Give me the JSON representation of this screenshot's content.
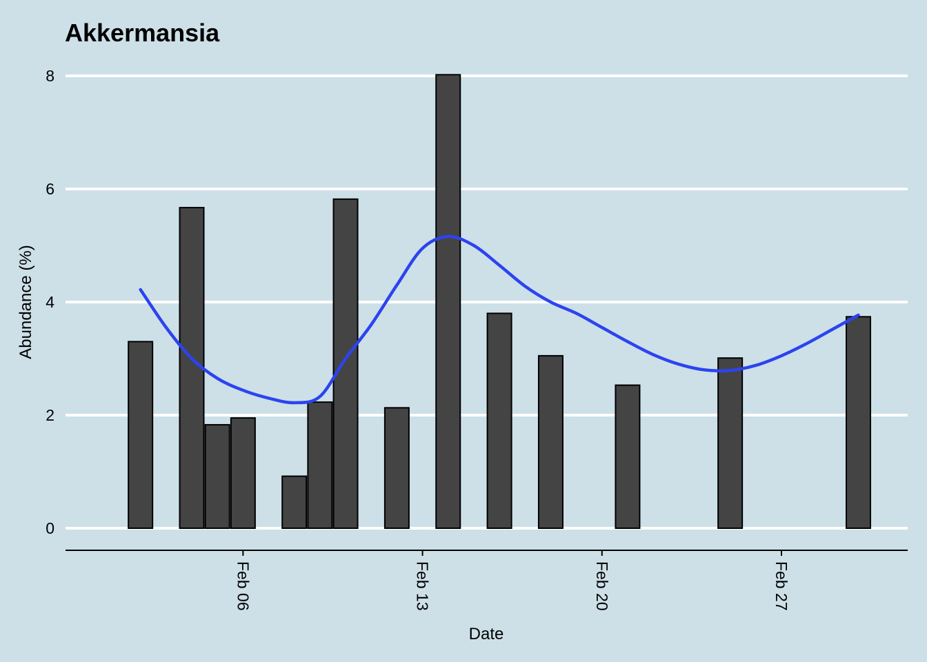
{
  "chart_data": {
    "type": "bar",
    "title": "Akkermansia",
    "xlabel": "Date",
    "ylabel": "Abundance (%)",
    "ylim": [
      0,
      8
    ],
    "yticks": [
      0,
      2,
      4,
      6,
      8
    ],
    "xlim": [
      "2022-02-01",
      "2022-03-02"
    ],
    "xticks": [
      {
        "date": "2022-02-06",
        "label": "Feb 06"
      },
      {
        "date": "2022-02-13",
        "label": "Feb 13"
      },
      {
        "date": "2022-02-20",
        "label": "Feb 20"
      },
      {
        "date": "2022-02-27",
        "label": "Feb 27"
      }
    ],
    "bars": [
      {
        "date": "2022-02-02",
        "value": 3.3
      },
      {
        "date": "2022-02-04",
        "value": 5.67
      },
      {
        "date": "2022-02-05",
        "value": 1.83
      },
      {
        "date": "2022-02-06",
        "value": 1.95
      },
      {
        "date": "2022-02-08",
        "value": 0.92
      },
      {
        "date": "2022-02-09",
        "value": 2.23
      },
      {
        "date": "2022-02-10",
        "value": 5.82
      },
      {
        "date": "2022-02-12",
        "value": 2.13
      },
      {
        "date": "2022-02-14",
        "value": 8.02
      },
      {
        "date": "2022-02-16",
        "value": 3.8
      },
      {
        "date": "2022-02-18",
        "value": 3.05
      },
      {
        "date": "2022-02-21",
        "value": 2.53
      },
      {
        "date": "2022-02-25",
        "value": 3.01
      },
      {
        "date": "2022-03-02",
        "value": 3.74
      }
    ],
    "trend": {
      "type": "smooth",
      "points": [
        {
          "date": "2022-02-02",
          "value": 4.22
        },
        {
          "date": "2022-02-03",
          "value": 3.55
        },
        {
          "date": "2022-02-04",
          "value": 3.0
        },
        {
          "date": "2022-02-05",
          "value": 2.65
        },
        {
          "date": "2022-02-06",
          "value": 2.44
        },
        {
          "date": "2022-02-07",
          "value": 2.3
        },
        {
          "date": "2022-02-08",
          "value": 2.22
        },
        {
          "date": "2022-02-09",
          "value": 2.33
        },
        {
          "date": "2022-02-10",
          "value": 3.0
        },
        {
          "date": "2022-02-11",
          "value": 3.6
        },
        {
          "date": "2022-02-12",
          "value": 4.3
        },
        {
          "date": "2022-02-13",
          "value": 4.95
        },
        {
          "date": "2022-02-14",
          "value": 5.16
        },
        {
          "date": "2022-02-15",
          "value": 5.0
        },
        {
          "date": "2022-02-16",
          "value": 4.65
        },
        {
          "date": "2022-02-17",
          "value": 4.28
        },
        {
          "date": "2022-02-18",
          "value": 4.0
        },
        {
          "date": "2022-02-19",
          "value": 3.8
        },
        {
          "date": "2022-02-20",
          "value": 3.55
        },
        {
          "date": "2022-02-21",
          "value": 3.3
        },
        {
          "date": "2022-02-22",
          "value": 3.07
        },
        {
          "date": "2022-02-23",
          "value": 2.9
        },
        {
          "date": "2022-02-24",
          "value": 2.8
        },
        {
          "date": "2022-02-25",
          "value": 2.79
        },
        {
          "date": "2022-02-26",
          "value": 2.88
        },
        {
          "date": "2022-02-27",
          "value": 3.05
        },
        {
          "date": "2022-02-28",
          "value": 3.27
        },
        {
          "date": "2022-03-01",
          "value": 3.52
        },
        {
          "date": "2022-03-02",
          "value": 3.77
        }
      ]
    },
    "grid": {
      "horizontal": true,
      "vertical": false
    },
    "colors": {
      "background": "#cde0e8",
      "gridline": "#ffffff",
      "bar_fill": "#444444",
      "bar_stroke": "#000000",
      "trend_line": "#2b44f0",
      "axis": "#000000"
    }
  }
}
